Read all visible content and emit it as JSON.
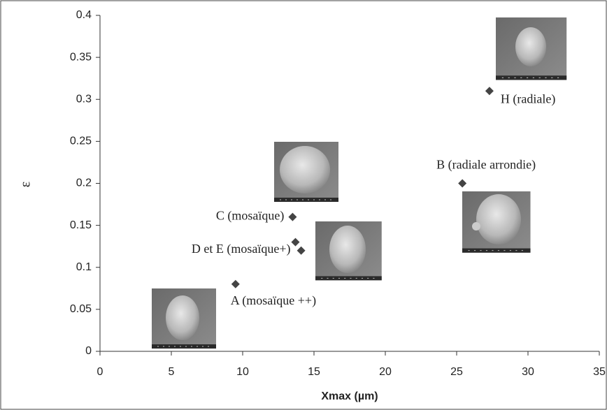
{
  "chart_data": {
    "type": "scatter",
    "x_label": "Xmax (µm)",
    "y_label": "ε",
    "x": [
      9.5,
      13.5,
      13.7,
      14.1,
      25.4,
      27.3
    ],
    "values": [
      0.08,
      0.16,
      0.13,
      0.12,
      0.2,
      0.31
    ],
    "point_labels": [
      "A (mosaïque ++)",
      "C (mosaïque)",
      "D et E (mosaïque+)",
      null,
      "B (radiale arrondie)",
      "H (radiale)"
    ],
    "color": "#444444",
    "xlim": [
      0,
      35
    ],
    "xticks": [
      0,
      5,
      10,
      15,
      20,
      25,
      30,
      35
    ],
    "ylim": [
      0,
      0.4
    ],
    "yticks": [
      0,
      0.05,
      0.1,
      0.15,
      0.2,
      0.25,
      0.3,
      0.35,
      0.4
    ],
    "grid": false
  }
}
